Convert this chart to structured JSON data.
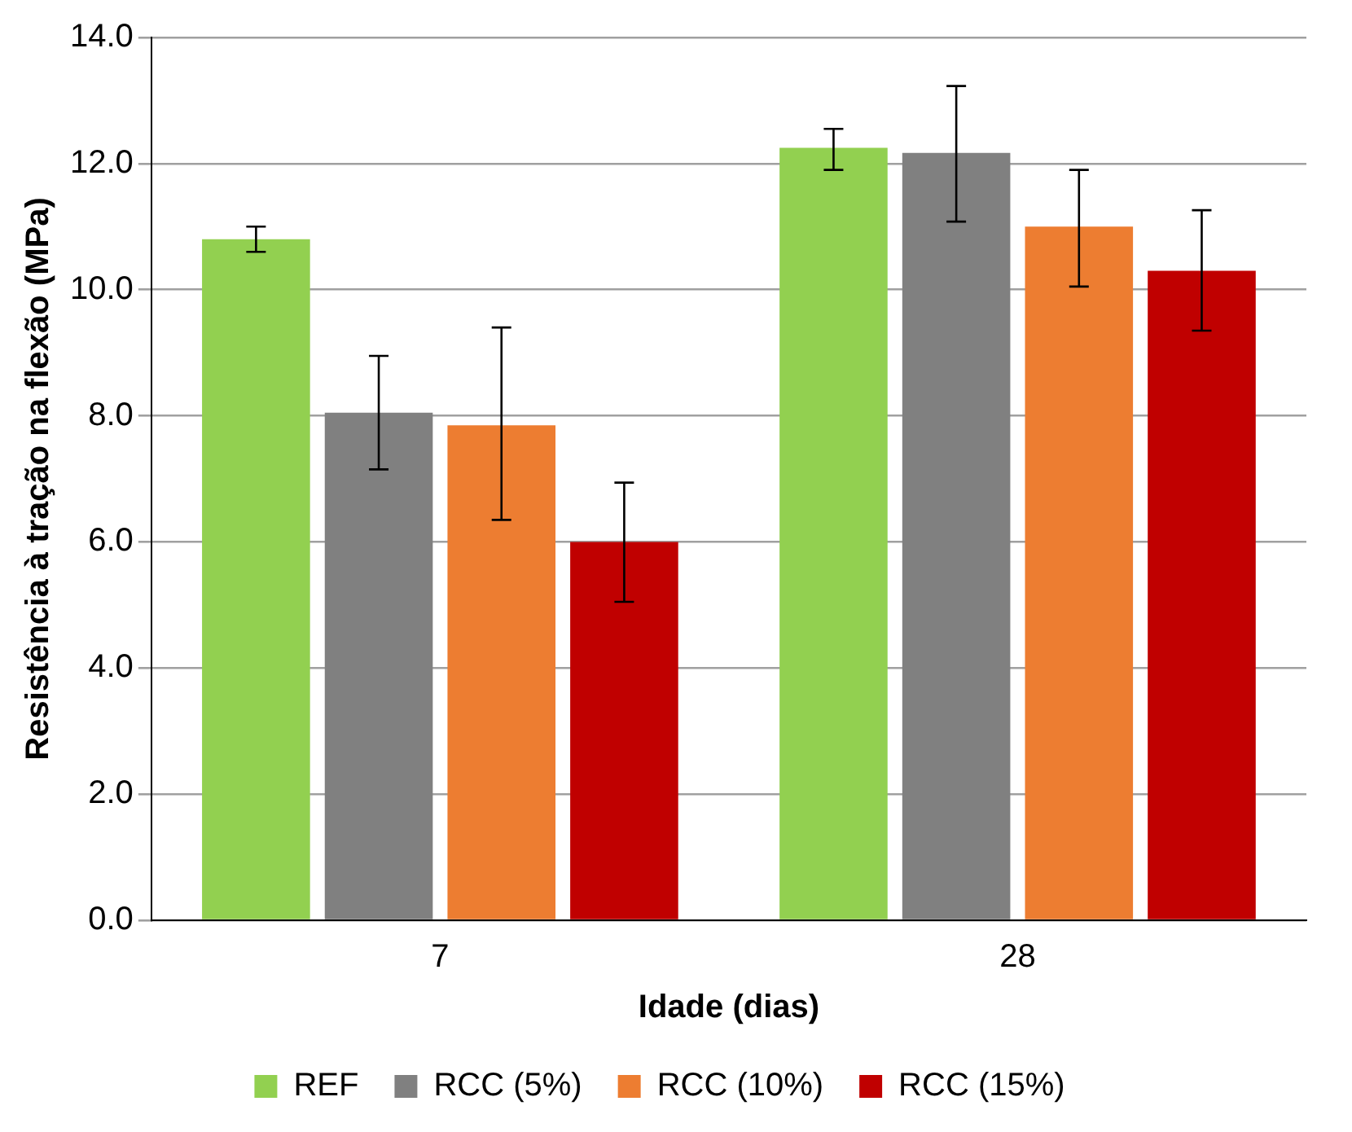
{
  "chart_data": {
    "type": "bar",
    "xlabel": "Idade (dias)",
    "ylabel": "Resistência à tração na flexão (MPa)",
    "categories": [
      "7",
      "28"
    ],
    "series": [
      {
        "name": "REF",
        "color": "#92d050",
        "values": [
          10.8,
          12.25
        ],
        "errors": [
          [
            10.6,
            11.0
          ],
          [
            11.9,
            12.55
          ]
        ]
      },
      {
        "name": "RCC (5%)",
        "color": "#808080",
        "values": [
          8.05,
          12.17
        ],
        "errors": [
          [
            7.15,
            8.95
          ],
          [
            11.08,
            13.23
          ]
        ]
      },
      {
        "name": "RCC (10%)",
        "color": "#ed7d31",
        "values": [
          7.85,
          11.0
        ],
        "errors": [
          [
            6.35,
            9.4
          ],
          [
            10.05,
            11.9
          ]
        ]
      },
      {
        "name": "RCC (15%)",
        "color": "#c00000",
        "values": [
          6.0,
          10.3
        ],
        "errors": [
          [
            5.05,
            6.94
          ],
          [
            9.35,
            11.26
          ]
        ]
      }
    ],
    "ylim": [
      0,
      14
    ],
    "yticks": [
      {
        "value": 0,
        "label": "0.0"
      },
      {
        "value": 2,
        "label": "2.0"
      },
      {
        "value": 4,
        "label": "4.0"
      },
      {
        "value": 6,
        "label": "6.0"
      },
      {
        "value": 8,
        "label": "8.0"
      },
      {
        "value": 10,
        "label": "10.0"
      },
      {
        "value": 12,
        "label": "12.0"
      },
      {
        "value": 14,
        "label": "14.0"
      }
    ],
    "grid": "y",
    "legend": "bottom"
  }
}
